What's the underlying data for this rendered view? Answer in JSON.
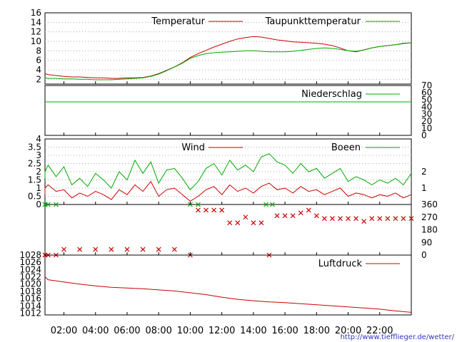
{
  "chart_data": [
    {
      "type": "line",
      "panel": "temperature",
      "ylim": [
        1,
        16
      ],
      "y_ticks": [
        "2",
        "4",
        "6",
        "8",
        "10",
        "12",
        "14",
        "16"
      ],
      "grid": true,
      "legend_position": "top-right",
      "colors": {
        "Temperatur": "#cc0000",
        "Taupunkttemperatur": "#00aa00"
      },
      "series": [
        {
          "name": "Temperatur",
          "x": [
            0.0,
            0.5,
            1.0,
            1.5,
            2.0,
            2.5,
            3.0,
            3.5,
            4.0,
            4.5,
            5.0,
            5.5,
            6.0,
            6.5,
            7.0,
            7.5,
            8.0,
            8.5,
            9.0,
            9.5,
            10.0,
            10.5,
            11.0,
            11.5,
            12.0,
            12.5,
            13.0,
            13.5,
            14.0,
            14.5,
            15.0,
            15.5,
            16.0,
            16.5,
            17.0,
            17.5,
            18.0,
            18.5,
            19.0,
            19.5,
            20.0,
            20.5,
            21.0,
            21.5,
            22.0,
            22.5,
            23.0,
            23.5,
            24.0
          ],
          "values": [
            3.3,
            3.2,
            3.0,
            2.8,
            2.6,
            2.5,
            2.5,
            2.4,
            2.3,
            2.3,
            2.2,
            2.2,
            2.3,
            2.3,
            2.4,
            2.7,
            3.2,
            3.9,
            4.6,
            5.5,
            6.6,
            7.4,
            8.1,
            8.8,
            9.4,
            10.0,
            10.5,
            10.8,
            11.0,
            10.9,
            10.6,
            10.3,
            10.1,
            9.9,
            9.8,
            9.7,
            9.6,
            9.4,
            9.1,
            8.6,
            8.0,
            7.8,
            8.2,
            8.6,
            8.9,
            9.1,
            9.3,
            9.6,
            9.7
          ]
        },
        {
          "name": "Taupunkttemperatur",
          "x": [
            0.0,
            0.5,
            1.0,
            1.5,
            2.0,
            2.5,
            3.0,
            3.5,
            4.0,
            4.5,
            5.0,
            5.5,
            6.0,
            6.5,
            7.0,
            7.5,
            8.0,
            8.5,
            9.0,
            9.5,
            10.0,
            10.5,
            11.0,
            11.5,
            12.0,
            12.5,
            13.0,
            13.5,
            14.0,
            14.5,
            15.0,
            15.5,
            16.0,
            16.5,
            17.0,
            17.5,
            18.0,
            18.5,
            19.0,
            19.5,
            20.0,
            20.5,
            21.0,
            21.5,
            22.0,
            22.5,
            23.0,
            23.5,
            24.0
          ],
          "values": [
            2.4,
            2.3,
            2.2,
            2.2,
            2.1,
            2.1,
            2.0,
            2.0,
            1.9,
            1.9,
            1.9,
            2.0,
            2.1,
            2.2,
            2.3,
            2.6,
            3.1,
            3.8,
            4.6,
            5.4,
            6.4,
            7.0,
            7.4,
            7.6,
            7.7,
            7.8,
            7.9,
            8.0,
            8.0,
            7.9,
            7.8,
            7.8,
            7.8,
            7.9,
            8.1,
            8.3,
            8.5,
            8.6,
            8.5,
            8.3,
            8.0,
            7.9,
            8.2,
            8.6,
            8.9,
            9.1,
            9.3,
            9.5,
            9.7
          ]
        }
      ]
    },
    {
      "type": "line",
      "panel": "precipitation",
      "ylim": [
        0,
        70
      ],
      "y_ticks": [
        "0",
        "10",
        "20",
        "30",
        "40",
        "50",
        "60",
        "70"
      ],
      "legend_position": "top-right",
      "colors": {
        "Niederschlag": "#00aa00"
      },
      "series": [
        {
          "name": "Niederschlag",
          "x": [
            0,
            24
          ],
          "values": [
            47,
            47
          ]
        }
      ]
    },
    {
      "type": "line",
      "panel": "wind",
      "ylim": [
        0,
        4
      ],
      "y_ticks": [
        "0",
        "0.5",
        "1",
        "1.5",
        "2",
        "2.5",
        "3",
        "3.5",
        "4"
      ],
      "y2_ticks": [
        "1",
        "2"
      ],
      "legend_position": "top-right",
      "colors": {
        "Wind": "#cc0000",
        "Boeen": "#00aa00"
      },
      "series": [
        {
          "name": "Wind",
          "x": [
            0,
            0.5,
            1,
            1.5,
            2,
            2.5,
            3,
            3.5,
            4,
            4.5,
            5,
            5.5,
            6,
            6.5,
            7,
            7.5,
            8,
            8.5,
            9,
            9.5,
            10,
            10.5,
            11,
            11.5,
            12,
            12.5,
            13,
            13.5,
            14,
            14.5,
            15,
            15.5,
            16,
            16.5,
            17,
            17.5,
            18,
            18.5,
            19,
            19.5,
            20,
            20.5,
            21,
            21.5,
            22,
            22.5,
            23,
            23.5,
            24
          ],
          "values": [
            0.6,
            1.0,
            1.2,
            0.8,
            0.9,
            0.4,
            0.7,
            0.5,
            0.8,
            0.6,
            0.3,
            0.9,
            0.6,
            1.2,
            0.8,
            1.4,
            0.5,
            0.9,
            1.0,
            0.6,
            0.2,
            0.5,
            0.9,
            1.1,
            0.6,
            1.2,
            0.8,
            1.0,
            0.7,
            1.1,
            1.3,
            0.9,
            1.0,
            0.7,
            1.1,
            0.8,
            0.9,
            0.6,
            0.8,
            1.0,
            0.5,
            0.7,
            0.6,
            0.4,
            0.6,
            0.5,
            0.7,
            0.4,
            0.6
          ]
        },
        {
          "name": "Boeen",
          "x": [
            0,
            0.5,
            1,
            1.5,
            2,
            2.5,
            3,
            3.5,
            4,
            4.5,
            5,
            5.5,
            6,
            6.5,
            7,
            7.5,
            8,
            8.5,
            9,
            9.5,
            10,
            10.5,
            11,
            11.5,
            12,
            12.5,
            13,
            13.5,
            14,
            14.5,
            15,
            15.5,
            16,
            16.5,
            17,
            17.5,
            18,
            18.5,
            19,
            19.5,
            20,
            20.5,
            21,
            21.5,
            22,
            22.5,
            23,
            23.5,
            24
          ],
          "values": [
            1.6,
            2.0,
            2.4,
            1.7,
            2.3,
            1.2,
            1.6,
            1.1,
            1.9,
            1.5,
            1.0,
            2.0,
            1.5,
            2.7,
            1.9,
            2.6,
            1.3,
            2.1,
            2.2,
            1.6,
            0.9,
            1.4,
            2.2,
            2.5,
            1.8,
            2.7,
            2.1,
            2.4,
            2.0,
            2.9,
            3.1,
            2.6,
            2.4,
            1.9,
            2.5,
            2.0,
            2.2,
            1.6,
            1.9,
            2.2,
            1.4,
            1.7,
            1.5,
            1.2,
            1.5,
            1.3,
            1.6,
            1.2,
            1.9
          ]
        }
      ]
    },
    {
      "type": "scatter",
      "panel": "wind-direction",
      "ylim": [
        0,
        360
      ],
      "y2_ticks": [
        "0",
        "90",
        "180",
        "270",
        "360"
      ],
      "colors": {
        "direction": "#cc0000",
        "gust-direction": "#00aa00"
      },
      "series": [
        {
          "x": [
            0.0,
            0.5,
            1.0,
            1.5,
            2.0,
            3.0,
            4.0,
            5.0,
            6.0,
            7.0,
            8.0,
            9.0,
            10.0,
            10.5,
            11.0,
            11.5,
            12.0,
            12.5,
            13.0,
            13.5,
            14.0,
            14.5,
            15.0,
            15.5,
            16.0,
            16.5,
            17.0,
            17.5,
            18.0,
            18.5,
            19.0,
            19.5,
            20.0,
            20.5,
            21.0,
            21.5,
            22.0,
            22.5,
            23.0,
            23.5,
            24.0
          ],
          "values": [
            0,
            0,
            0,
            0,
            40,
            40,
            40,
            40,
            40,
            40,
            40,
            40,
            0,
            320,
            320,
            320,
            320,
            230,
            230,
            270,
            230,
            230,
            0,
            280,
            280,
            280,
            300,
            320,
            280,
            260,
            260,
            260,
            260,
            260,
            240,
            260,
            260,
            260,
            260,
            260,
            260
          ]
        },
        {
          "x": [
            0.0,
            0.5,
            1.0,
            1.5,
            10.0,
            10.5,
            14.8,
            15.2
          ],
          "values": [
            360,
            360,
            360,
            360,
            360,
            360,
            360,
            360
          ]
        }
      ]
    },
    {
      "type": "line",
      "panel": "pressure",
      "ylim": [
        1011.5,
        1028
      ],
      "y_ticks": [
        "1012",
        "1014",
        "1016",
        "1018",
        "1020",
        "1022",
        "1024",
        "1026",
        "1028"
      ],
      "legend_position": "top-right",
      "colors": {
        "Luftdruck": "#cc0000"
      },
      "series": [
        {
          "name": "Luftdruck",
          "x": [
            0,
            1,
            2,
            3,
            4,
            5,
            6,
            7,
            8,
            9,
            10,
            11,
            12,
            13,
            14,
            15,
            16,
            17,
            18,
            19,
            20,
            21,
            22,
            23,
            24
          ],
          "values": [
            1022.0,
            1021.2,
            1020.6,
            1020.0,
            1019.5,
            1019.1,
            1018.9,
            1018.7,
            1018.4,
            1018.1,
            1017.6,
            1017.1,
            1016.4,
            1015.8,
            1015.4,
            1015.1,
            1014.9,
            1014.6,
            1014.3,
            1014.0,
            1013.7,
            1013.4,
            1013.1,
            1012.6,
            1012.2
          ]
        }
      ]
    }
  ],
  "x_tick_labels": [
    "02:00",
    "04:00",
    "06:00",
    "08:00",
    "10:00",
    "12:00",
    "14:00",
    "16:00",
    "18:00",
    "20:00",
    "22:00"
  ],
  "footer_url": "http://www.tiefflieger.de/wetter/"
}
